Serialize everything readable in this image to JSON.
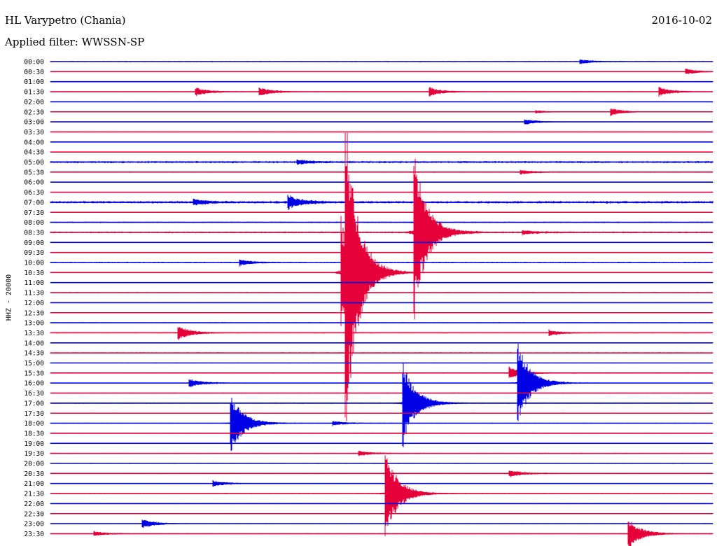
{
  "header": {
    "station": "HL Varypetro (Chania)",
    "filter": "Applied filter: WWSSN-SP",
    "date": "2016-10-02"
  },
  "colors": {
    "trace_a": "#0000e6",
    "trace_b": "#e6003a",
    "background": "#ffffff",
    "text": "#000000"
  },
  "chart_data": {
    "type": "line",
    "ylabel": "HHZ - 20000",
    "ticks": [
      "00:00",
      "00:30",
      "01:00",
      "01:30",
      "02:00",
      "02:30",
      "03:00",
      "03:30",
      "04:00",
      "04:30",
      "05:00",
      "05:30",
      "06:00",
      "06:30",
      "07:00",
      "07:30",
      "08:00",
      "08:30",
      "09:00",
      "09:30",
      "10:00",
      "10:30",
      "11:00",
      "11:30",
      "12:00",
      "12:30",
      "13:00",
      "13:30",
      "14:00",
      "14:30",
      "15:00",
      "15:30",
      "16:00",
      "16:30",
      "17:00",
      "17:30",
      "18:00",
      "18:30",
      "19:00",
      "19:30",
      "20:00",
      "20:30",
      "21:00",
      "21:30",
      "22:00",
      "22:30",
      "23:00",
      "23:30"
    ],
    "series_colors": [
      "#0000e6",
      "#e6003a"
    ],
    "trace_window_minutes": 30,
    "noise_level": [
      0.6,
      0.4,
      0.4,
      0.5,
      0.3,
      0.4,
      0.4,
      0.5,
      0.5,
      0.5,
      1.2,
      0.6,
      0.4,
      0.5,
      1.4,
      0.5,
      0.8,
      1.0,
      0.5,
      0.4,
      0.8,
      0.5,
      0.5,
      0.6,
      0.5,
      0.4,
      0.6,
      0.6,
      0.5,
      0.8,
      0.5,
      0.6,
      0.6,
      0.6,
      0.6,
      0.6,
      0.6,
      0.5,
      0.5,
      0.7,
      0.5,
      0.6,
      0.5,
      0.6,
      0.5,
      0.5,
      0.5,
      0.6
    ],
    "events": [
      {
        "row": 0,
        "minute": 24.0,
        "amplitude": 3
      },
      {
        "row": 1,
        "minute": 28.8,
        "amplitude": 4
      },
      {
        "row": 3,
        "minute": 6.6,
        "amplitude": 6
      },
      {
        "row": 3,
        "minute": 9.5,
        "amplitude": 6
      },
      {
        "row": 3,
        "minute": 17.2,
        "amplitude": 6
      },
      {
        "row": 3,
        "minute": 27.6,
        "amplitude": 6
      },
      {
        "row": 5,
        "minute": 25.4,
        "amplitude": 5
      },
      {
        "row": 5,
        "minute": 22.0,
        "amplitude": 2
      },
      {
        "row": 6,
        "minute": 21.5,
        "amplitude": 4
      },
      {
        "row": 10,
        "minute": 11.2,
        "amplitude": 3
      },
      {
        "row": 11,
        "minute": 21.3,
        "amplitude": 3
      },
      {
        "row": 14,
        "minute": 6.5,
        "amplitude": 4
      },
      {
        "row": 14,
        "minute": 10.8,
        "amplitude": 9
      },
      {
        "row": 17,
        "minute": 16.5,
        "amplitude": 110
      },
      {
        "row": 17,
        "minute": 21.4,
        "amplitude": 3
      },
      {
        "row": 20,
        "minute": 8.6,
        "amplitude": 4
      },
      {
        "row": 21,
        "minute": 13.2,
        "amplitude": 70
      },
      {
        "row": 21,
        "minute": 13.4,
        "amplitude": 170
      },
      {
        "row": 27,
        "minute": 5.8,
        "amplitude": 10
      },
      {
        "row": 27,
        "minute": 22.6,
        "amplitude": 4
      },
      {
        "row": 31,
        "minute": 20.8,
        "amplitude": 8
      },
      {
        "row": 32,
        "minute": 21.2,
        "amplitude": 55
      },
      {
        "row": 32,
        "minute": 6.3,
        "amplitude": 6
      },
      {
        "row": 34,
        "minute": 16.0,
        "amplitude": 55
      },
      {
        "row": 36,
        "minute": 8.2,
        "amplitude": 40
      },
      {
        "row": 36,
        "minute": 12.8,
        "amplitude": 3
      },
      {
        "row": 39,
        "minute": 14.0,
        "amplitude": 3
      },
      {
        "row": 41,
        "minute": 20.8,
        "amplitude": 5
      },
      {
        "row": 42,
        "minute": 7.4,
        "amplitude": 4
      },
      {
        "row": 43,
        "minute": 15.2,
        "amplitude": 60
      },
      {
        "row": 46,
        "minute": 4.2,
        "amplitude": 6
      },
      {
        "row": 47,
        "minute": 26.2,
        "amplitude": 20
      },
      {
        "row": 47,
        "minute": 2.0,
        "amplitude": 3
      }
    ]
  }
}
